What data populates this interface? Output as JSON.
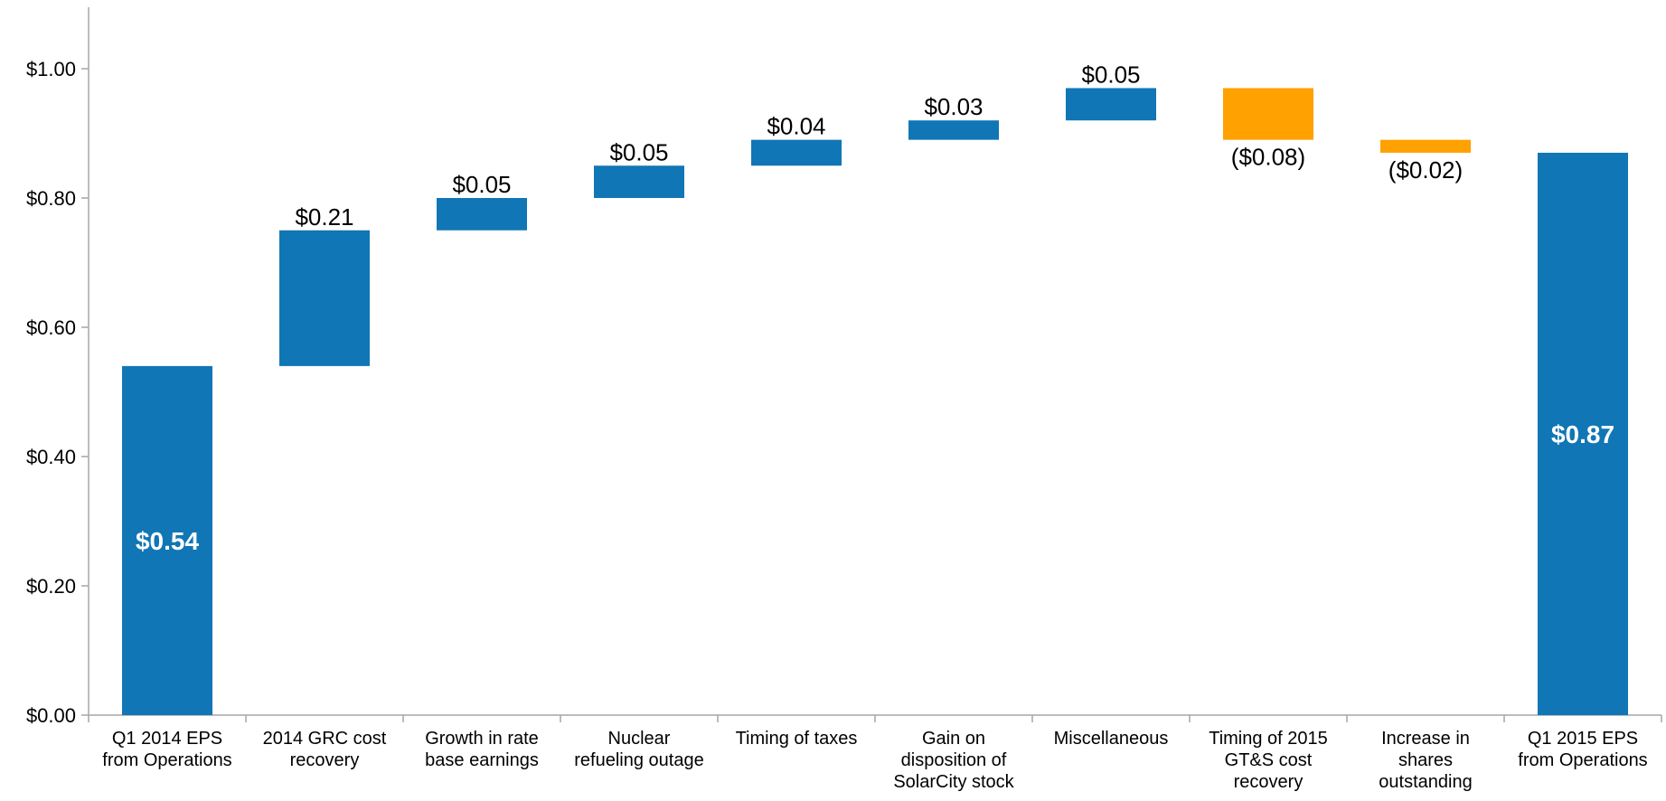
{
  "chart_data": {
    "type": "bar",
    "subtype": "waterfall",
    "title": "",
    "xlabel": "",
    "ylabel": "",
    "ylim": [
      0,
      1.1
    ],
    "yticks": [
      "$0.00",
      "$0.20",
      "$0.40",
      "$0.60",
      "$0.80",
      "$1.00"
    ],
    "ytick_values": [
      0,
      0.2,
      0.4,
      0.6,
      0.8,
      1.0
    ],
    "grid": false,
    "legend": "none",
    "colors": {
      "increase": "#1176b5",
      "decrease": "#ffa100",
      "total": "#1176b5",
      "axis": "#a6a6a6"
    },
    "steps": [
      {
        "category": [
          "Q1 2014 EPS",
          "from Operations"
        ],
        "kind": "total",
        "value": 0.54,
        "label": "$0.54"
      },
      {
        "category": [
          "2014 GRC cost",
          "recovery"
        ],
        "kind": "increase",
        "value": 0.21,
        "label": "$0.21"
      },
      {
        "category": [
          "Growth in rate",
          "base earnings"
        ],
        "kind": "increase",
        "value": 0.05,
        "label": "$0.05"
      },
      {
        "category": [
          "Nuclear",
          "refueling outage"
        ],
        "kind": "increase",
        "value": 0.05,
        "label": "$0.05"
      },
      {
        "category": [
          "Timing of taxes"
        ],
        "kind": "increase",
        "value": 0.04,
        "label": "$0.04"
      },
      {
        "category": [
          "Gain on",
          "disposition of",
          "SolarCity stock"
        ],
        "kind": "increase",
        "value": 0.03,
        "label": "$0.03"
      },
      {
        "category": [
          "Miscellaneous"
        ],
        "kind": "increase",
        "value": 0.05,
        "label": "$0.05"
      },
      {
        "category": [
          "Timing of 2015",
          "GT&S cost",
          "recovery"
        ],
        "kind": "decrease",
        "value": -0.08,
        "label": "($0.08)"
      },
      {
        "category": [
          "Increase in",
          "shares",
          "outstanding"
        ],
        "kind": "decrease",
        "value": -0.02,
        "label": "($0.02)"
      },
      {
        "category": [
          "Q1 2015 EPS",
          "from Operations"
        ],
        "kind": "total",
        "value": 0.87,
        "label": "$0.87"
      }
    ]
  }
}
